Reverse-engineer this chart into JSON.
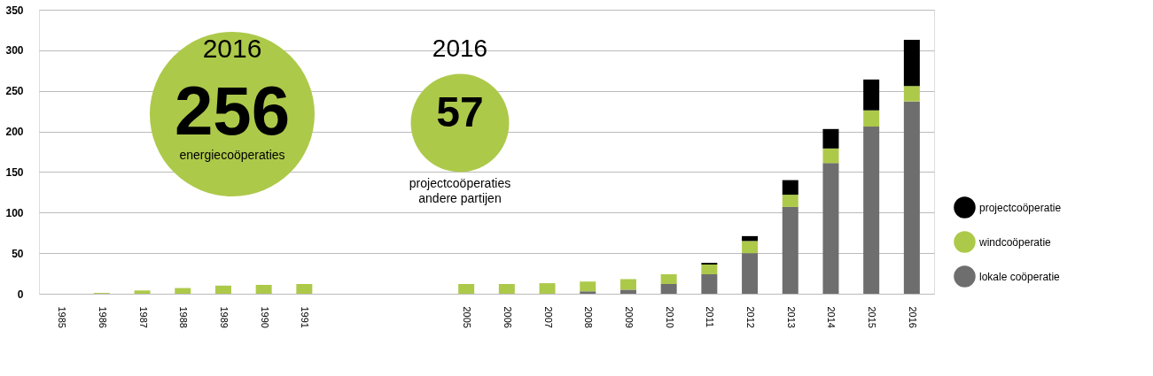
{
  "chart_data": {
    "type": "bar",
    "stacked": true,
    "categories": [
      "1985",
      "1986",
      "1987",
      "1988",
      "1989",
      "1990",
      "1991",
      null,
      null,
      null,
      "2005",
      "2006",
      "2007",
      "2008",
      "2009",
      "2010",
      "2011",
      "2012",
      "2013",
      "2014",
      "2015",
      "2016"
    ],
    "series": [
      {
        "name": "lokale coöperatie",
        "color": "#6e6e6e",
        "values": [
          0,
          0,
          0,
          0,
          0,
          0,
          0,
          null,
          null,
          null,
          0,
          0,
          0,
          3,
          5,
          12,
          24,
          50,
          107,
          161,
          206,
          237
        ]
      },
      {
        "name": "windcoöperatie",
        "color": "#adc94a",
        "values": [
          0,
          1,
          4,
          7,
          10,
          11,
          12,
          null,
          null,
          null,
          12,
          12,
          13,
          12,
          13,
          12,
          12,
          15,
          15,
          18,
          20,
          19
        ]
      },
      {
        "name": "projectcoöperatie",
        "color": "#000000",
        "values": [
          0,
          0,
          0,
          0,
          0,
          0,
          0,
          null,
          null,
          null,
          0,
          0,
          0,
          0,
          0,
          0,
          2,
          6,
          18,
          24,
          38,
          57
        ]
      }
    ],
    "ylim": [
      0,
      350
    ],
    "yticks": [
      0,
      50,
      100,
      150,
      200,
      250,
      300,
      350
    ],
    "grid": "y",
    "legend": "right",
    "annotations": [
      "2016",
      "256",
      "energiecoöperaties",
      "2016",
      "57",
      "projectcoöperaties\nandere partijen"
    ]
  }
}
